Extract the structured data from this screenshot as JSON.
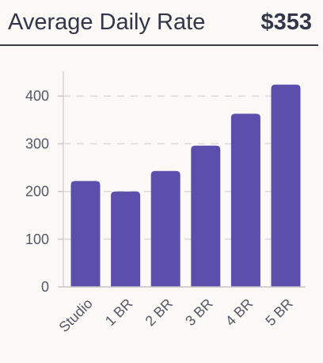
{
  "header": {
    "title": "Average Daily Rate",
    "value": "$353"
  },
  "chart_data": {
    "type": "bar",
    "categories": [
      "Studio",
      "1 BR",
      "2 BR",
      "3 BR",
      "4 BR",
      "5 BR"
    ],
    "values": [
      222,
      200,
      243,
      296,
      363,
      424
    ],
    "yticks": [
      0,
      100,
      200,
      300,
      400
    ],
    "ylim": [
      0,
      450
    ],
    "grid": true,
    "bar_color": "#5c4ead",
    "title": "",
    "xlabel": "",
    "ylabel": ""
  }
}
